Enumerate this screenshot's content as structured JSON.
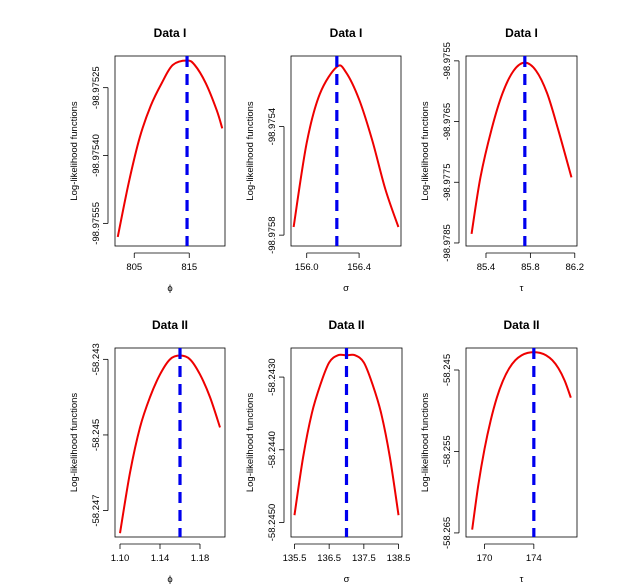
{
  "colors": {
    "curve": "#ee0000",
    "mle_line": "#0000ee",
    "axes": "#000000",
    "background": "#ffffff"
  },
  "chart_data": [
    {
      "type": "line",
      "title": "Data I",
      "xlabel": "ϕ",
      "ylabel": "Log-likelihood functions",
      "xlim": [
        801.5,
        821.5
      ],
      "ylim": [
        -98.9756,
        -98.97518
      ],
      "mle": 814.6,
      "x_ticks": [
        805,
        815
      ],
      "x_tick_labels": [
        "805",
        "815"
      ],
      "y_ticks": [
        -98.97525,
        -98.9754,
        -98.97555
      ],
      "y_tick_labels": [
        "-98.97525",
        "-98.97540",
        "-98.97555"
      ],
      "series": [
        {
          "name": "log-likelihood",
          "x": [
            802.0,
            804.0,
            806.0,
            808.0,
            810.0,
            812.0,
            814.6,
            816.0,
            818.0,
            820.0,
            821.0
          ],
          "values": [
            -98.97558,
            -98.97546,
            -98.97536,
            -98.97529,
            -98.97524,
            -98.9752,
            -98.97519,
            -98.9752,
            -98.97524,
            -98.9753,
            -98.97534
          ]
        }
      ]
    },
    {
      "type": "line",
      "title": "Data I",
      "xlabel": "σ",
      "ylabel": "Log-likelihood functions",
      "xlim": [
        155.88,
        156.72
      ],
      "ylim": [
        -98.97584,
        -98.97514
      ],
      "mle": 156.23,
      "x_ticks": [
        156.0,
        156.4
      ],
      "x_tick_labels": [
        "156.0",
        "156.4"
      ],
      "y_ticks": [
        -98.9754,
        -98.9758
      ],
      "y_tick_labels": [
        "-98.9754",
        "-98.9758"
      ],
      "series": [
        {
          "name": "log-likelihood",
          "x": [
            155.9,
            156.0,
            156.1,
            156.23,
            156.3,
            156.4,
            156.5,
            156.6,
            156.7
          ],
          "values": [
            -98.97577,
            -98.97546,
            -98.97528,
            -98.97518,
            -98.9752,
            -98.9753,
            -98.97545,
            -98.97563,
            -98.97577
          ]
        }
      ]
    },
    {
      "type": "line",
      "title": "Data I",
      "xlabel": "τ",
      "ylabel": "Log-likelihood functions",
      "xlim": [
        85.22,
        86.22
      ],
      "ylim": [
        -98.97855,
        -98.97542
      ],
      "mle": 85.75,
      "x_ticks": [
        85.4,
        85.8,
        86.2
      ],
      "x_tick_labels": [
        "85.4",
        "85.8",
        "86.2"
      ],
      "y_ticks": [
        -98.9755,
        -98.9765,
        -98.9775,
        -98.9785
      ],
      "y_tick_labels": [
        "-98.9755",
        "-98.9765",
        "-98.9775",
        "-98.9785"
      ],
      "series": [
        {
          "name": "log-likelihood",
          "x": [
            85.27,
            85.35,
            85.45,
            85.55,
            85.65,
            85.75,
            85.85,
            85.95,
            86.05,
            86.17
          ],
          "values": [
            -98.97835,
            -98.97742,
            -98.97663,
            -98.97603,
            -98.97566,
            -98.97553,
            -98.97566,
            -98.97603,
            -98.97663,
            -98.97742
          ]
        }
      ]
    },
    {
      "type": "line",
      "title": "Data II",
      "xlabel": "ϕ",
      "ylabel": "Log-likelihood functions",
      "xlim": [
        1.095,
        1.205
      ],
      "ylim": [
        -58.2477,
        -58.2427
      ],
      "mle": 1.16,
      "x_ticks": [
        1.1,
        1.14,
        1.18
      ],
      "x_tick_labels": [
        "1.10",
        "1.14",
        "1.18"
      ],
      "y_ticks": [
        -58.243,
        -58.245,
        -58.247
      ],
      "y_tick_labels": [
        "-58.243",
        "-58.245",
        "-58.247"
      ],
      "series": [
        {
          "name": "log-likelihood",
          "x": [
            1.1,
            1.11,
            1.12,
            1.13,
            1.14,
            1.15,
            1.16,
            1.17,
            1.18,
            1.19,
            1.2
          ],
          "values": [
            -58.2476,
            -58.246,
            -58.2448,
            -58.244,
            -58.2434,
            -58.243,
            -58.2429,
            -58.243,
            -58.2434,
            -58.244,
            -58.2448
          ]
        }
      ]
    },
    {
      "type": "line",
      "title": "Data II",
      "xlabel": "σ",
      "ylabel": "Log-likelihood functions",
      "xlim": [
        135.4,
        138.6
      ],
      "ylim": [
        -58.2452,
        -58.2426
      ],
      "mle": 137.0,
      "x_ticks": [
        135.5,
        136.5,
        137.5,
        138.5
      ],
      "x_tick_labels": [
        "135.5",
        "136.5",
        "137.5",
        "138.5"
      ],
      "y_ticks": [
        -58.243,
        -58.244,
        -58.245
      ],
      "y_tick_labels": [
        "-58.2430",
        "-58.2440",
        "-58.2450"
      ],
      "series": [
        {
          "name": "log-likelihood",
          "x": [
            135.5,
            135.75,
            136.0,
            136.25,
            136.5,
            136.75,
            137.0,
            137.25,
            137.5,
            137.75,
            138.0,
            138.25,
            138.5
          ],
          "values": [
            -58.2449,
            -58.2441,
            -58.2435,
            -58.2431,
            -58.2428,
            -58.2427,
            -58.2427,
            -58.2427,
            -58.2428,
            -58.2431,
            -58.2435,
            -58.2441,
            -58.2449
          ]
        }
      ]
    },
    {
      "type": "line",
      "title": "Data II",
      "xlabel": "τ",
      "ylabel": "Log-likelihood functions",
      "xlim": [
        168.5,
        177.5
      ],
      "ylim": [
        -58.2655,
        -58.2423
      ],
      "mle": 174.0,
      "x_ticks": [
        170,
        174
      ],
      "x_tick_labels": [
        "170",
        "174"
      ],
      "y_ticks": [
        -58.245,
        -58.255,
        -58.265
      ],
      "y_tick_labels": [
        "-58.245",
        "-58.255",
        "-58.265"
      ],
      "series": [
        {
          "name": "log-likelihood",
          "x": [
            169.0,
            169.5,
            170.0,
            170.5,
            171.0,
            171.5,
            172.0,
            172.5,
            173.0,
            173.5,
            174.0,
            174.5,
            175.0,
            175.5,
            176.0,
            176.5,
            177.0
          ],
          "values": [
            -58.2646,
            -58.2591,
            -58.2547,
            -58.2512,
            -58.2484,
            -58.2463,
            -58.2448,
            -58.2438,
            -58.2432,
            -58.2429,
            -58.2428,
            -58.2429,
            -58.2432,
            -58.2438,
            -58.2448,
            -58.2463,
            -58.2484
          ]
        }
      ]
    }
  ]
}
